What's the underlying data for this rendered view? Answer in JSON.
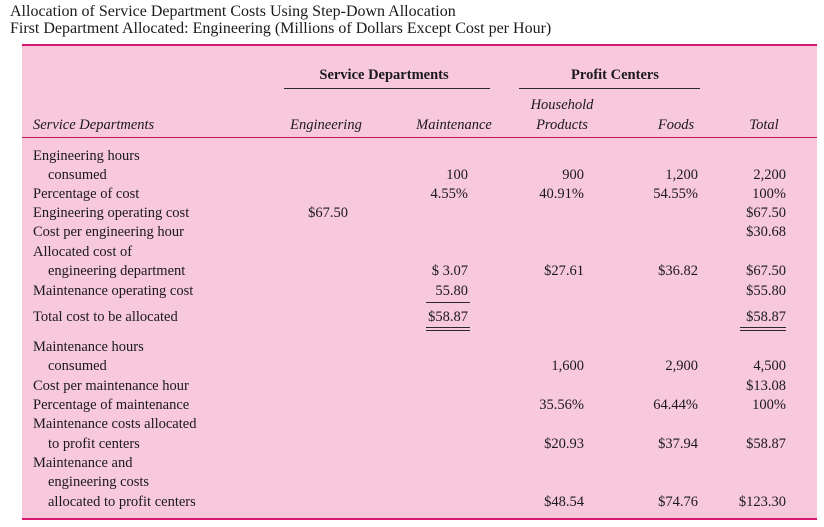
{
  "title": {
    "line1": "Allocation of Service Department Costs Using Step-Down Allocation",
    "line2": "First Department Allocated: Engineering (Millions of Dollars Except Cost per Hour)"
  },
  "group_headers": {
    "service": "Service Departments",
    "profit": "Profit Centers"
  },
  "columns": {
    "row_label": "Service Departments",
    "engineering": "Engineering",
    "maintenance": "Maintenance",
    "household_1": "Household",
    "household_2": "Products",
    "foods": "Foods",
    "total": "Total"
  },
  "rows": {
    "eng_hours_l1": "Engineering hours",
    "eng_hours_l2": "consumed",
    "eng_hours": {
      "maintenance": "100",
      "household": "900",
      "foods": "1,200",
      "total": "2,200"
    },
    "pct_cost": {
      "label": "Percentage of cost",
      "maintenance": "4.55%",
      "household": "40.91%",
      "foods": "54.55%",
      "total": "100%"
    },
    "eng_op_cost": {
      "label": "Engineering operating cost",
      "engineering": "$67.50",
      "total": "$67.50"
    },
    "cost_per_eng_hour": {
      "label": "Cost per engineering hour",
      "total": "$30.68"
    },
    "alloc_eng_l1": "Allocated cost of",
    "alloc_eng_l2": "engineering department",
    "alloc_eng": {
      "maintenance": "$ 3.07",
      "household": "$27.61",
      "foods": "$36.82",
      "total": "$67.50"
    },
    "maint_op_cost": {
      "label": "Maintenance operating cost",
      "maintenance": "55.80",
      "total": "$55.80"
    },
    "total_to_alloc": {
      "label": "Total cost to be allocated",
      "maintenance": "$58.87",
      "total": "$58.87"
    },
    "maint_hours_l1": "Maintenance hours",
    "maint_hours_l2": "consumed",
    "maint_hours": {
      "household": "1,600",
      "foods": "2,900",
      "total": "4,500"
    },
    "cost_per_maint_hour": {
      "label": "Cost per maintenance hour",
      "total": "$13.08"
    },
    "pct_maint": {
      "label": "Percentage of maintenance",
      "household": "35.56%",
      "foods": "64.44%",
      "total": "100%"
    },
    "maint_alloc_l1": "Maintenance costs allocated",
    "maint_alloc_l2": "to profit centers",
    "maint_alloc": {
      "household": "$20.93",
      "foods": "$37.94",
      "total": "$58.87"
    },
    "me_l1": "Maintenance and",
    "me_l2": "engineering costs",
    "me_l3": "allocated to profit centers",
    "me": {
      "household": "$48.54",
      "foods": "$74.76",
      "total": "$123.30"
    }
  }
}
